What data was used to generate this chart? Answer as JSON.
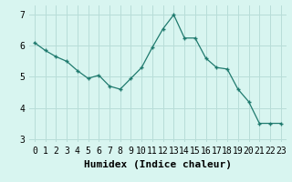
{
  "x": [
    0,
    1,
    2,
    3,
    4,
    5,
    6,
    7,
    8,
    9,
    10,
    11,
    12,
    13,
    14,
    15,
    16,
    17,
    18,
    19,
    20,
    21,
    22,
    23
  ],
  "y": [
    6.1,
    5.85,
    5.65,
    5.5,
    5.2,
    4.95,
    5.05,
    4.7,
    4.6,
    4.95,
    5.3,
    5.95,
    6.55,
    7.0,
    6.25,
    6.25,
    5.6,
    5.3,
    5.25,
    4.6,
    4.2,
    3.5,
    3.5,
    3.5
  ],
  "xlabel": "Humidex (Indice chaleur)",
  "xlim": [
    -0.5,
    23.5
  ],
  "ylim": [
    2.9,
    7.3
  ],
  "yticks": [
    3,
    4,
    5,
    6,
    7
  ],
  "xtick_labels": [
    "0",
    "1",
    "2",
    "3",
    "4",
    "5",
    "6",
    "7",
    "8",
    "9",
    "10",
    "11",
    "12",
    "13",
    "14",
    "15",
    "16",
    "17",
    "18",
    "19",
    "20",
    "21",
    "22",
    "23"
  ],
  "line_color": "#1f7a6e",
  "bg_color": "#d8f5f0",
  "grid_color": "#b8ddd8",
  "xlabel_fontsize": 8,
  "tick_fontsize": 7
}
